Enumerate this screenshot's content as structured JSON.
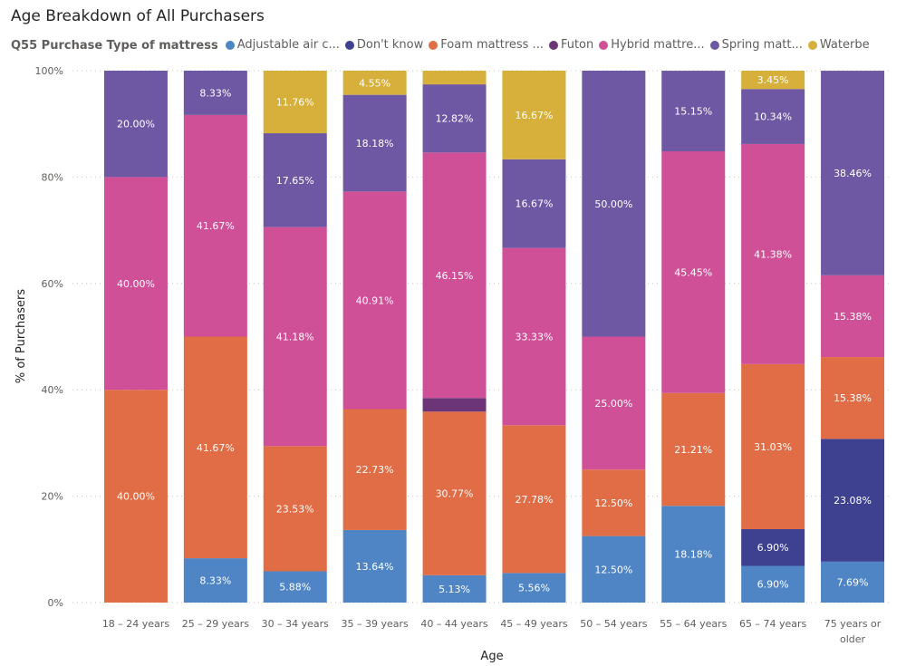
{
  "chart_data": {
    "type": "bar",
    "stacked": "percent",
    "title": "Age Breakdown of All Purchasers",
    "xlabel": "Age",
    "ylabel": "% of Purchasers",
    "ylim": [
      0,
      100
    ],
    "yticks": [
      "0%",
      "20%",
      "40%",
      "60%",
      "80%",
      "100%"
    ],
    "grid": true,
    "legend_title": "Q55 Purchase Type of mattress",
    "legend_position": "top-left",
    "categories": [
      [
        "18 – 24 years"
      ],
      [
        "25 – 29 years"
      ],
      [
        "30 – 34 years"
      ],
      [
        "35 – 39 years"
      ],
      [
        "40 – 44 years"
      ],
      [
        "45 – 49 years"
      ],
      [
        "50 – 54 years"
      ],
      [
        "55 – 64 years"
      ],
      [
        "65 – 74 years"
      ],
      [
        "75 years or",
        "older"
      ]
    ],
    "series": [
      {
        "name": "Adjustable air c...",
        "color": "#4f85c5",
        "values": [
          0,
          8.33,
          5.88,
          13.64,
          5.13,
          5.56,
          12.5,
          18.18,
          6.9,
          7.69
        ]
      },
      {
        "name": "Don't know",
        "color": "#3d418f",
        "values": [
          0,
          0,
          0,
          0,
          0,
          0,
          0,
          0,
          6.9,
          23.08
        ]
      },
      {
        "name": "Foam mattress ...",
        "color": "#e06d45",
        "values": [
          40.0,
          41.67,
          23.53,
          22.73,
          30.77,
          27.78,
          12.5,
          21.21,
          31.03,
          15.38
        ]
      },
      {
        "name": "Futon",
        "color": "#6b3578",
        "values": [
          0,
          0,
          0,
          0,
          2.56,
          0,
          0,
          0,
          0,
          0
        ]
      },
      {
        "name": "Hybrid mattre...",
        "color": "#d05097",
        "values": [
          40.0,
          41.67,
          41.18,
          40.91,
          46.15,
          33.33,
          25.0,
          45.45,
          41.38,
          15.38
        ]
      },
      {
        "name": "Spring matt...",
        "color": "#6f58a3",
        "values": [
          20.0,
          8.33,
          17.65,
          18.18,
          12.82,
          16.67,
          50.0,
          15.15,
          10.34,
          38.46
        ]
      },
      {
        "name": "Waterbe",
        "color": "#d6b03b",
        "values": [
          0,
          0,
          11.76,
          4.55,
          2.56,
          16.67,
          0,
          0,
          3.45,
          0
        ]
      }
    ],
    "label_threshold": 3
  }
}
